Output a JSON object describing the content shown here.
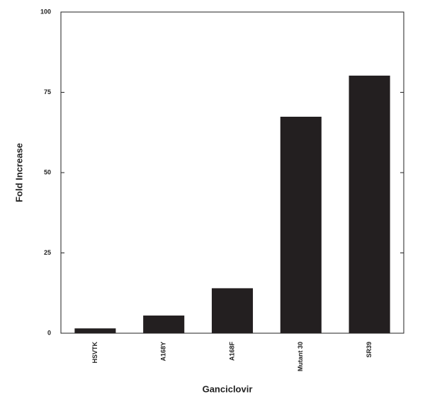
{
  "chart_data": {
    "type": "bar",
    "x_label": "Ganciclovir",
    "y_label": "Fold Increase",
    "categories": [
      "HSVTK",
      "A168Y",
      "A168F",
      "Mutant 30",
      "SR39"
    ],
    "values": [
      1.5,
      5.5,
      14,
      67.4,
      80.2
    ],
    "color": "#231f20",
    "ylim": [
      0,
      100
    ],
    "yticks": [
      0,
      25,
      50,
      75,
      100
    ],
    "grid": false
  }
}
